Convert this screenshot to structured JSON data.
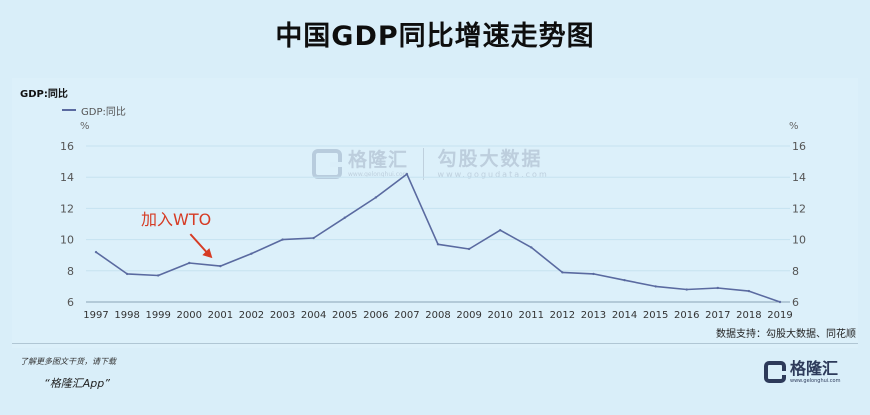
{
  "page": {
    "title": "中国GDP同比增速走势图",
    "source_note": "数据支持：勾股大数据、同花顺",
    "footer_note": "了解更多图文干货，请下载",
    "footer_app": "“格隆汇App”",
    "watermark": {
      "brand": "格隆汇",
      "brand_url": "www.gelonghui.com",
      "partner": "勾股大数据",
      "partner_url": "www.gogudata.com"
    },
    "footer_logo": {
      "brand": "格隆汇",
      "url": "www.gelonghui.com"
    }
  },
  "chart_data": {
    "type": "line",
    "title": "中国GDP同比增速走势图",
    "series_title": "GDP:同比",
    "unit_left": "%",
    "unit_right": "%",
    "x": [
      "1997",
      "1998",
      "1999",
      "2000",
      "2001",
      "2002",
      "2003",
      "2004",
      "2005",
      "2006",
      "2007",
      "2008",
      "2009",
      "2010",
      "2011",
      "2012",
      "2013",
      "2014",
      "2015",
      "2016",
      "2017",
      "2018",
      "2019"
    ],
    "series": [
      {
        "name": "GDP:同比",
        "color": "#5a6aa0",
        "values": [
          9.2,
          7.8,
          7.7,
          8.5,
          8.3,
          9.1,
          10.0,
          10.1,
          11.4,
          12.7,
          14.2,
          9.7,
          9.4,
          10.6,
          9.5,
          7.9,
          7.8,
          7.4,
          7.0,
          6.8,
          6.9,
          6.7,
          6.0
        ]
      }
    ],
    "ylim": [
      6,
      16
    ],
    "yticks": [
      6,
      8,
      10,
      12,
      14,
      16
    ],
    "grid": true,
    "legend": "top-left",
    "annotation": {
      "text": "加入WTO",
      "x": "2001",
      "color": "#d63b24"
    }
  }
}
